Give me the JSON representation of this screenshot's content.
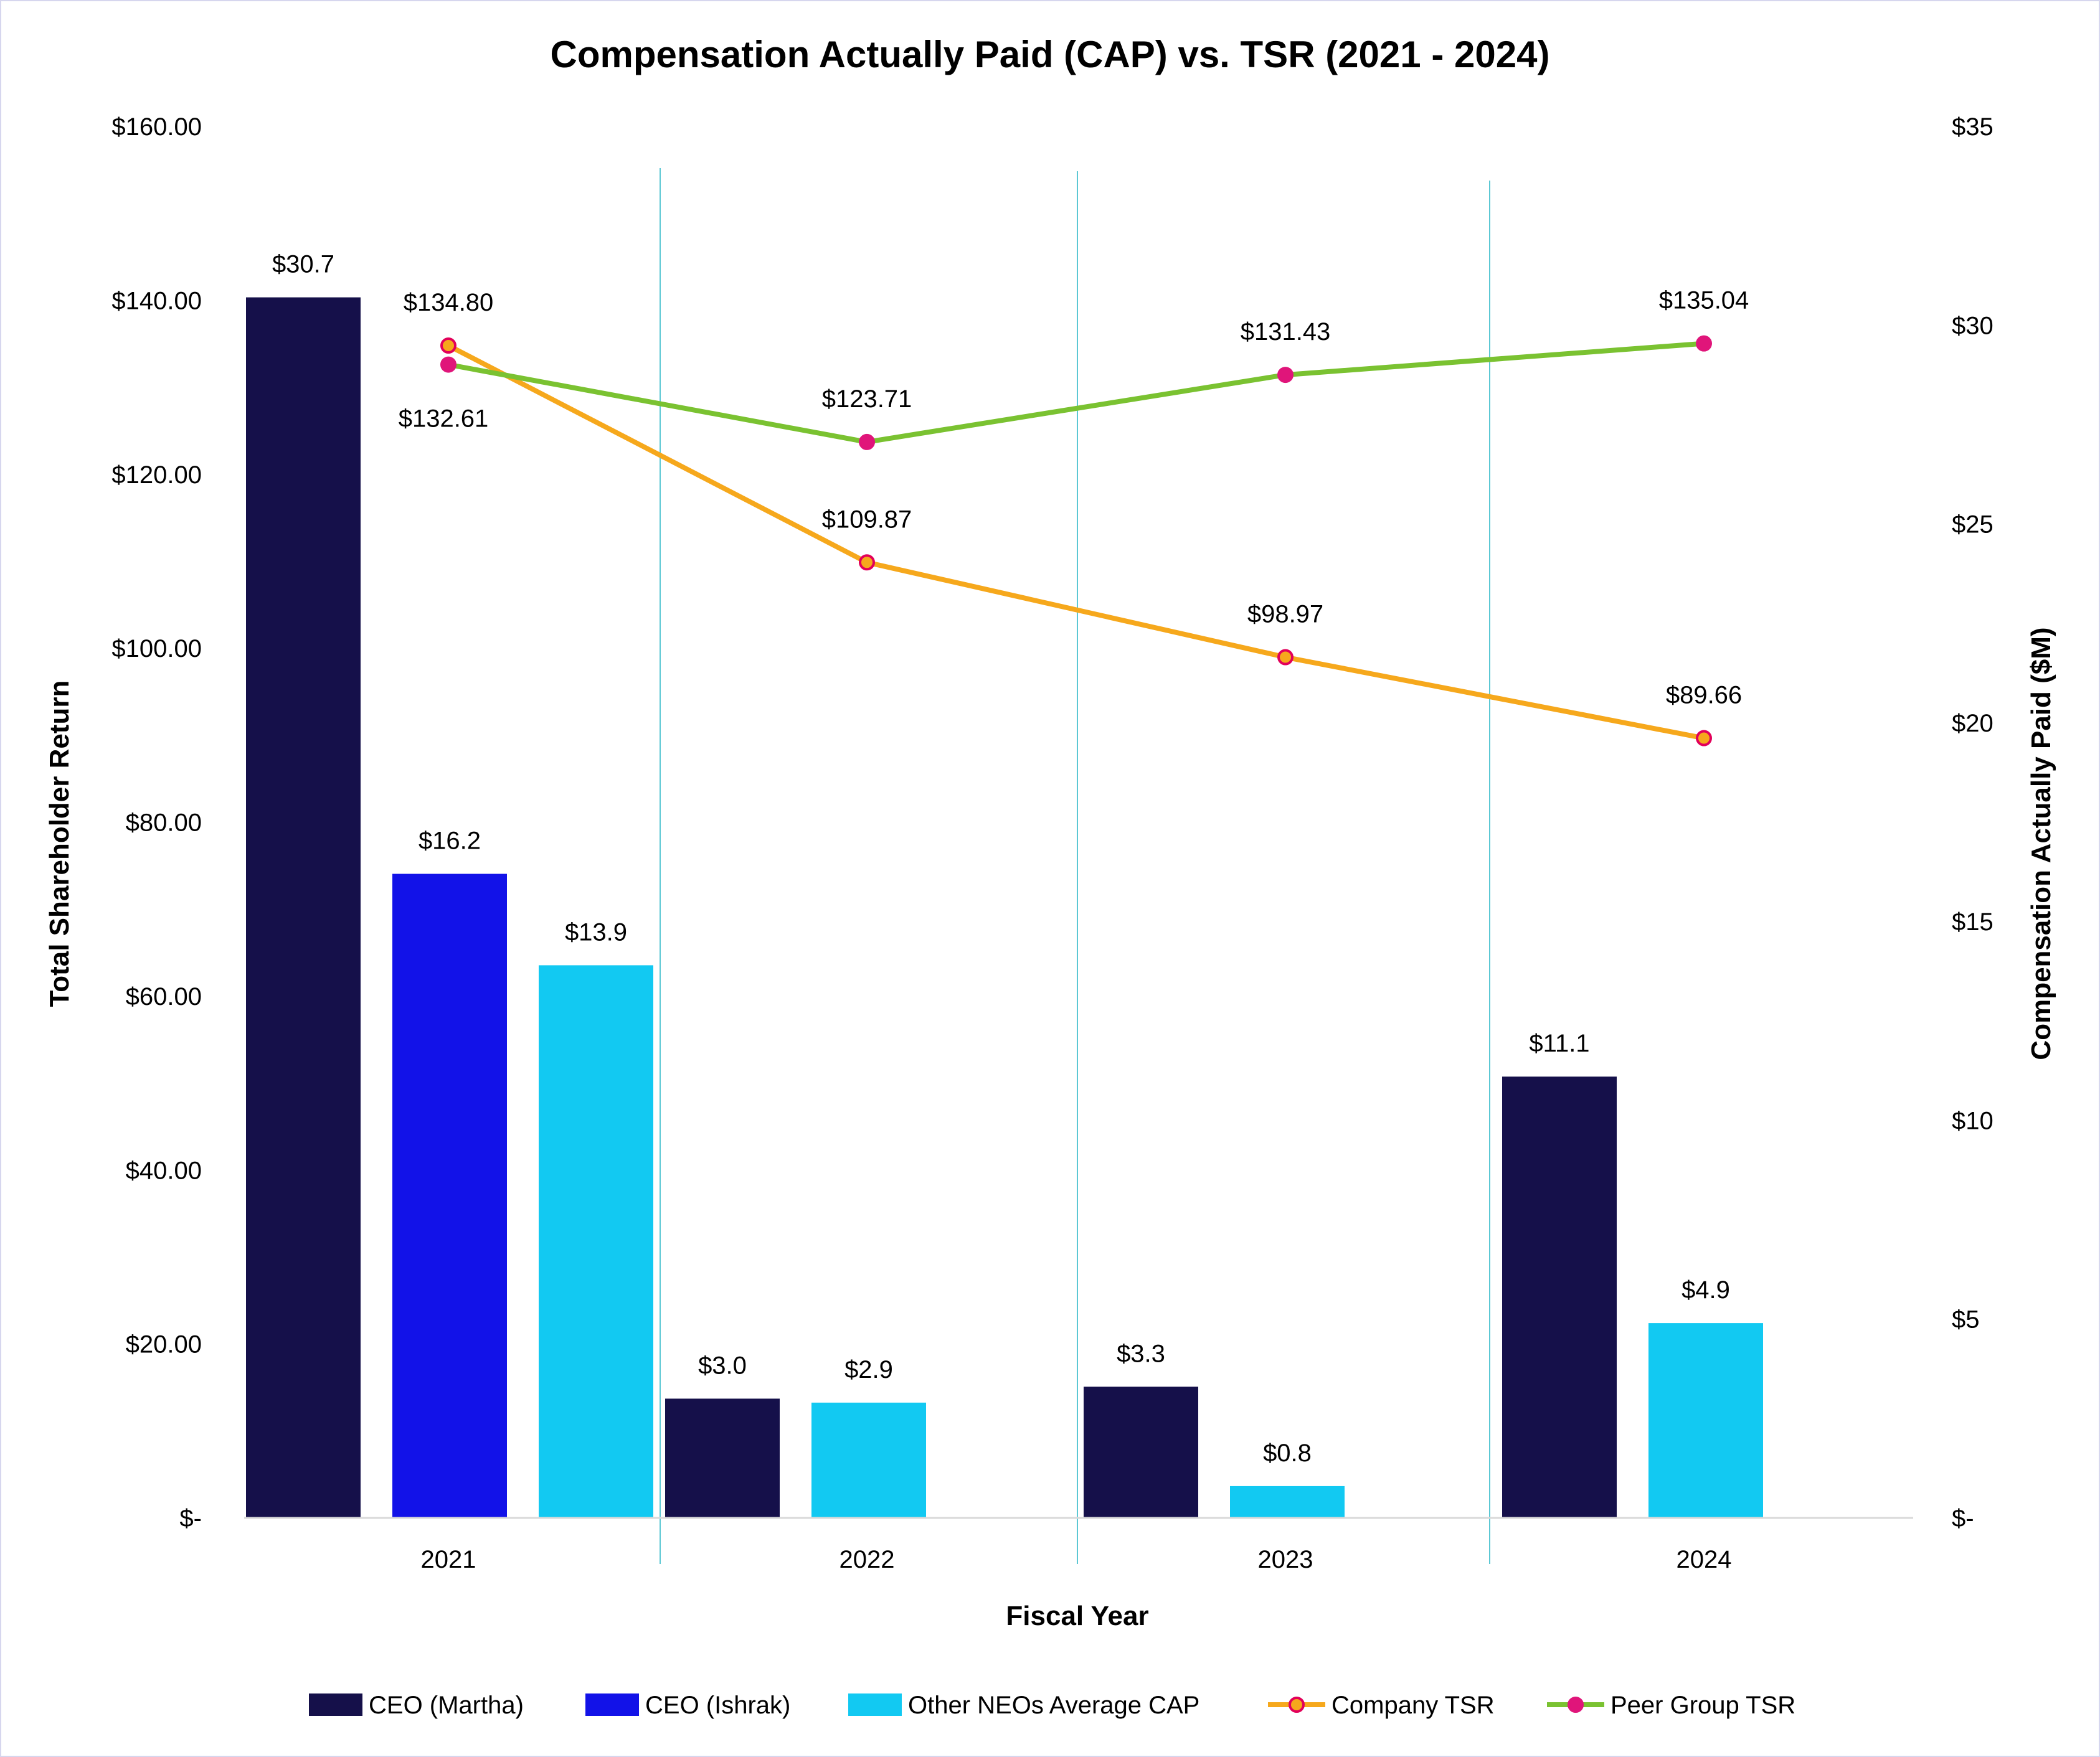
{
  "chart_data": {
    "type": "bar",
    "title": "Compensation Actually Paid (CAP) vs. TSR (2021 - 2024)",
    "xlabel": "Fiscal Year",
    "ylabel_left": "Total Shareholder Return",
    "ylabel_right": "Compensation Actually Paid ($M)",
    "categories": [
      "2021",
      "2022",
      "2023",
      "2024"
    ],
    "y_left_lim": [
      0,
      160
    ],
    "y_left_ticks": [
      {
        "value": 0,
        "label": "$-"
      },
      {
        "value": 20,
        "label": "$20.00"
      },
      {
        "value": 40,
        "label": "$40.00"
      },
      {
        "value": 60,
        "label": "$60.00"
      },
      {
        "value": 80,
        "label": "$80.00"
      },
      {
        "value": 100,
        "label": "$100.00"
      },
      {
        "value": 120,
        "label": "$120.00"
      },
      {
        "value": 140,
        "label": "$140.00"
      },
      {
        "value": 160,
        "label": "$160.00"
      }
    ],
    "y_right_lim": [
      0,
      35
    ],
    "y_right_ticks": [
      {
        "value": 0,
        "label": "$-"
      },
      {
        "value": 5,
        "label": "$5"
      },
      {
        "value": 10,
        "label": "$10"
      },
      {
        "value": 15,
        "label": "$15"
      },
      {
        "value": 20,
        "label": "$20"
      },
      {
        "value": 25,
        "label": "$25"
      },
      {
        "value": 30,
        "label": "$30"
      },
      {
        "value": 35,
        "label": "$35"
      }
    ],
    "bar_groups": [
      {
        "year": "2021",
        "bars": [
          {
            "series": "CEO (Martha)",
            "value": 30.7,
            "label": "$30.7"
          },
          {
            "series": "CEO (Ishrak)",
            "value": 16.2,
            "label": "$16.2"
          },
          {
            "series": "Other NEOs Average CAP",
            "value": 13.9,
            "label": "$13.9"
          }
        ]
      },
      {
        "year": "2022",
        "bars": [
          {
            "series": "CEO (Martha)",
            "value": 3.0,
            "label": "$3.0"
          },
          {
            "series": "Other NEOs Average CAP",
            "value": 2.9,
            "label": "$2.9"
          }
        ]
      },
      {
        "year": "2023",
        "bars": [
          {
            "series": "CEO (Martha)",
            "value": 3.3,
            "label": "$3.3"
          },
          {
            "series": "Other NEOs Average CAP",
            "value": 0.8,
            "label": "$0.8"
          }
        ]
      },
      {
        "year": "2024",
        "bars": [
          {
            "series": "CEO (Martha)",
            "value": 11.1,
            "label": "$11.1"
          },
          {
            "series": "Other NEOs Average CAP",
            "value": 4.9,
            "label": "$4.9"
          }
        ]
      }
    ],
    "line_series": [
      {
        "name": "Company TSR",
        "color": "#f6a81c",
        "marker_fill": "#f6a81c",
        "marker_stroke": "#e2005a",
        "values": [
          134.8,
          109.87,
          98.97,
          89.66
        ],
        "labels": [
          "$134.80",
          "$109.87",
          "$98.97",
          "$89.66"
        ]
      },
      {
        "name": "Peer Group TSR",
        "color": "#7ac231",
        "marker_fill": "#e0157a",
        "marker_stroke": "#e0157a",
        "values": [
          132.61,
          123.71,
          131.43,
          135.04
        ],
        "labels": [
          "$132.61",
          "$123.71",
          "$131.43",
          "$135.04"
        ]
      }
    ],
    "colors": {
      "CEO (Martha)": "#15104a",
      "CEO (Ishrak)": "#1212e8",
      "Other NEOs Average CAP": "#12c9f2",
      "highlight_label": "#4a4ae8",
      "divider": "#5cc8d4",
      "axis": "#d9d9d9"
    },
    "highlight_label_series": "Other NEOs Average CAP",
    "legend": {
      "position": "bottom",
      "items": [
        {
          "name": "CEO (Martha)",
          "kind": "bar"
        },
        {
          "name": "CEO (Ishrak)",
          "kind": "bar"
        },
        {
          "name": "Other NEOs Average CAP",
          "kind": "bar"
        },
        {
          "name": "Company TSR",
          "kind": "line"
        },
        {
          "name": "Peer Group TSR",
          "kind": "line"
        }
      ]
    }
  }
}
